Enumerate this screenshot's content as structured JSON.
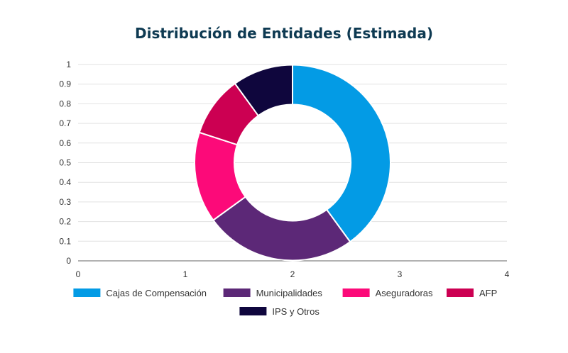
{
  "chart_data": {
    "type": "pie",
    "variant": "donut",
    "title": "Distribución de Entidades (Estimada)",
    "categories": [
      "Cajas de Compensación",
      "Municipalidades",
      "Aseguradoras",
      "AFP",
      "IPS y Otros"
    ],
    "values": [
      40,
      25,
      15,
      10,
      10
    ],
    "colors": [
      "#039be5",
      "#5c2877",
      "#fc0a79",
      "#cc0052",
      "#0f063d"
    ],
    "x_ticks": [
      "0",
      "1",
      "2",
      "3",
      "4"
    ],
    "y_ticks": [
      "0",
      "0.1",
      "0.2",
      "0.3",
      "0.4",
      "0.5",
      "0.6",
      "0.7",
      "0.8",
      "0.9",
      "1"
    ],
    "xlim": [
      0,
      4
    ],
    "ylim": [
      0,
      1
    ],
    "grid": true,
    "legend_position": "bottom"
  }
}
